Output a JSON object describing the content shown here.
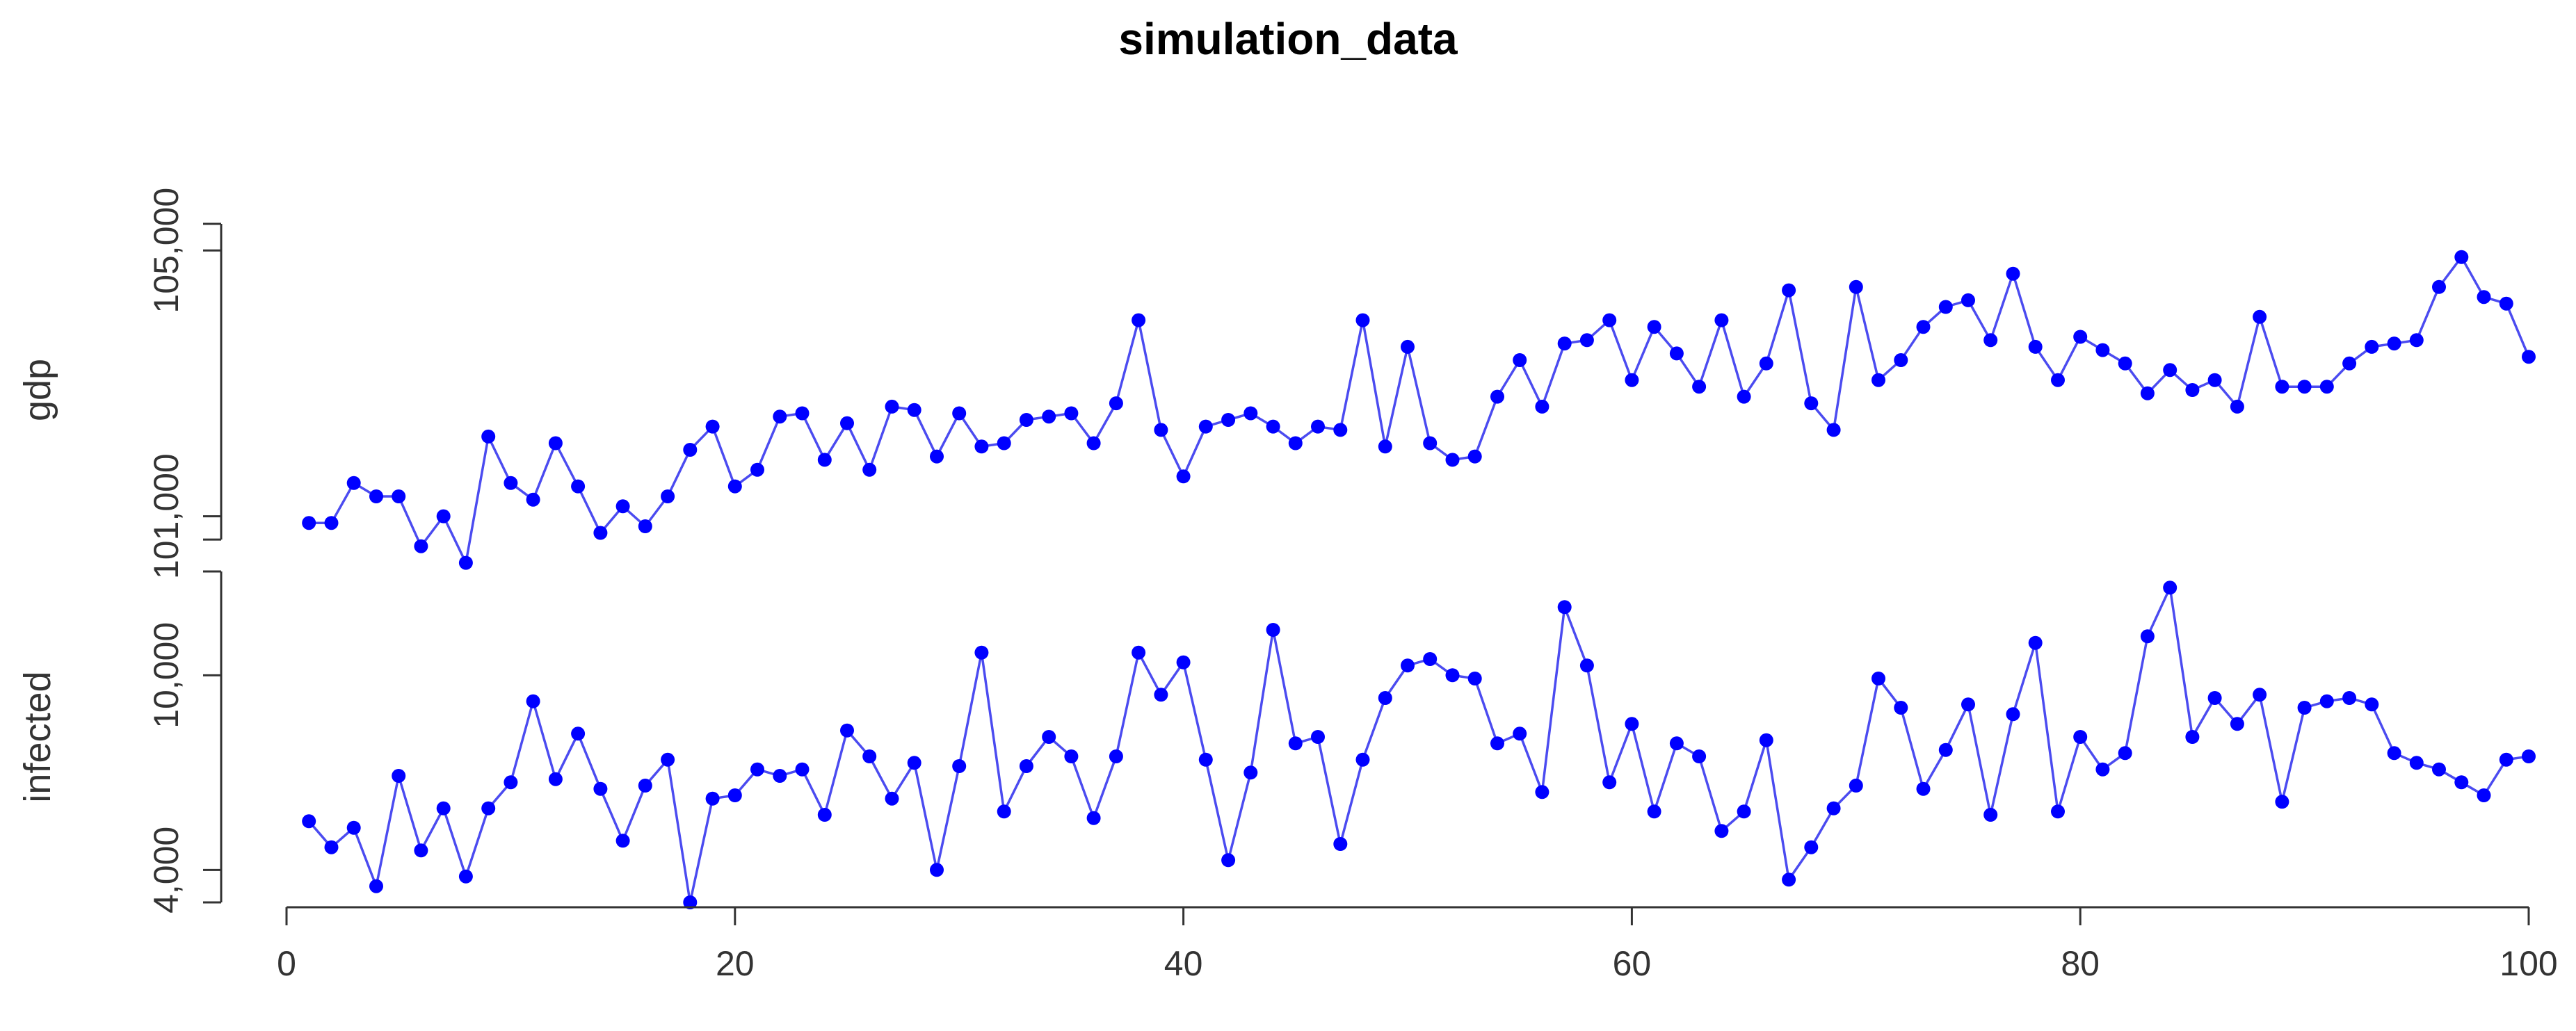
{
  "chart_data": {
    "type": "line",
    "title": "simulation_data",
    "xlabel": "",
    "x_ticks": [
      "0",
      "20",
      "40",
      "60",
      "80",
      "100"
    ],
    "xlim": [
      0,
      100
    ],
    "grid": false,
    "series_color": "#4B4BF0",
    "point_color": "#0000FF",
    "panels": [
      {
        "name": "gdp",
        "ylabel": "gdp",
        "y_ticks": [
          "101,000",
          "105,000"
        ],
        "y_tick_values": [
          101000,
          105000
        ],
        "y_axis_range": [
          100650,
          105400
        ],
        "ylim": [
          100400,
          105400
        ],
        "x": [
          1,
          2,
          3,
          4,
          5,
          6,
          7,
          8,
          9,
          10,
          11,
          12,
          13,
          14,
          15,
          16,
          17,
          18,
          19,
          20,
          21,
          22,
          23,
          24,
          25,
          26,
          27,
          28,
          29,
          30,
          31,
          32,
          33,
          34,
          35,
          36,
          37,
          38,
          39,
          40,
          41,
          42,
          43,
          44,
          45,
          46,
          47,
          48,
          49,
          50,
          51,
          52,
          53,
          54,
          55,
          56,
          57,
          58,
          59,
          60,
          61,
          62,
          63,
          64,
          65,
          66,
          67,
          68,
          69,
          70,
          71,
          72,
          73,
          74,
          75,
          76,
          77,
          78,
          79,
          80,
          81,
          82,
          83,
          84,
          85,
          86,
          87,
          88,
          89,
          90,
          91,
          92,
          93,
          94,
          95,
          96,
          97,
          98,
          99,
          100
        ],
        "values": [
          100900,
          100900,
          101500,
          101300,
          101300,
          100550,
          101000,
          100300,
          102200,
          101500,
          101250,
          102100,
          101450,
          100750,
          101150,
          100850,
          101300,
          102000,
          102350,
          101450,
          101700,
          102500,
          102550,
          101850,
          102400,
          101700,
          102650,
          102600,
          101900,
          102550,
          102050,
          102100,
          102450,
          102500,
          102550,
          102100,
          102700,
          103950,
          102300,
          101600,
          102350,
          102450,
          102550,
          102350,
          102100,
          102350,
          102300,
          103950,
          102050,
          103550,
          102100,
          101850,
          101900,
          102800,
          103350,
          102650,
          103600,
          103650,
          103950,
          103050,
          103850,
          103450,
          102950,
          103950,
          102800,
          103300,
          104400,
          102700,
          102300,
          104450,
          103050,
          103350,
          103850,
          104150,
          104250,
          103650,
          104650,
          103550,
          103050,
          103700,
          103500,
          103300,
          102850,
          103200,
          102900,
          103050,
          102650,
          104000,
          102950,
          102950,
          102950,
          103300,
          103550,
          103600,
          103650,
          104450,
          104900,
          104300,
          104200,
          103400
        ]
      },
      {
        "name": "infected",
        "ylabel": "infected",
        "y_ticks": [
          "4,000",
          "10,000"
        ],
        "y_tick_values": [
          4000,
          10000
        ],
        "y_axis_range": [
          3000,
          13200
        ],
        "ylim": [
          3000,
          13200
        ],
        "x": [
          1,
          2,
          3,
          4,
          5,
          6,
          7,
          8,
          9,
          10,
          11,
          12,
          13,
          14,
          15,
          16,
          17,
          18,
          19,
          20,
          21,
          22,
          23,
          24,
          25,
          26,
          27,
          28,
          29,
          30,
          31,
          32,
          33,
          34,
          35,
          36,
          37,
          38,
          39,
          40,
          41,
          42,
          43,
          44,
          45,
          46,
          47,
          48,
          49,
          50,
          51,
          52,
          53,
          54,
          55,
          56,
          57,
          58,
          59,
          60,
          61,
          62,
          63,
          64,
          65,
          66,
          67,
          68,
          69,
          70,
          71,
          72,
          73,
          74,
          75,
          76,
          77,
          78,
          79,
          80,
          81,
          82,
          83,
          84,
          85,
          86,
          87,
          88,
          89,
          90,
          91,
          92,
          93,
          94,
          95,
          96,
          97,
          98,
          99,
          100
        ],
        "values": [
          5500,
          4700,
          5300,
          3500,
          6900,
          4600,
          5900,
          3800,
          5900,
          6700,
          9200,
          6800,
          8200,
          6500,
          4900,
          6600,
          7400,
          3000,
          6200,
          6300,
          7100,
          6900,
          7100,
          5700,
          8300,
          7500,
          6200,
          7300,
          4000,
          7200,
          10700,
          5800,
          7200,
          8100,
          7500,
          5600,
          7500,
          10700,
          9400,
          10400,
          7400,
          4300,
          7000,
          11400,
          7900,
          8100,
          4800,
          7400,
          9300,
          10300,
          10500,
          10000,
          9900,
          7900,
          8200,
          6400,
          12100,
          10300,
          6700,
          8500,
          5800,
          7900,
          7500,
          5200,
          5800,
          8000,
          3700,
          4700,
          5900,
          6600,
          9900,
          9000,
          6500,
          7700,
          9100,
          5700,
          8800,
          11000,
          5800,
          8100,
          7100,
          7600,
          11200,
          12700,
          8100,
          9300,
          8500,
          9400,
          6100,
          9000,
          9200,
          9300,
          9100,
          7600,
          7300,
          7100,
          6700,
          6300,
          7400,
          7500
        ]
      }
    ]
  }
}
